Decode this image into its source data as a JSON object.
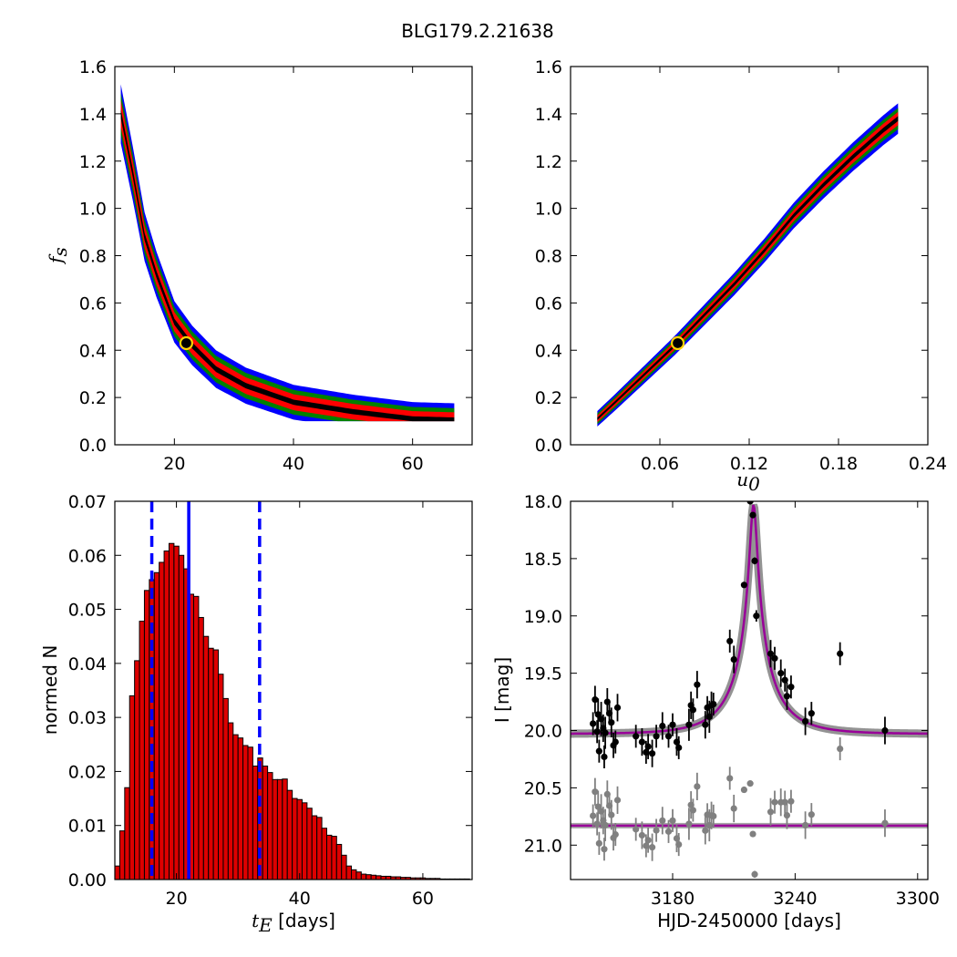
{
  "figure": {
    "title": "BLG179.2.21638"
  },
  "colors": {
    "c99": "#000000",
    "c95": "#ff0000",
    "c68": "#008000",
    "c50": "#0000ff",
    "hist": "#dd0000",
    "median": "#0000ff",
    "model": "#990099",
    "band": "#808080",
    "data": "#000000",
    "resid": "#808080",
    "marker_edge": "#ffd200"
  },
  "chart_data": [
    {
      "id": "fs-vs-tE",
      "type": "heatmap",
      "xlim": [
        10,
        70
      ],
      "ylim": [
        0,
        1.6
      ],
      "xticks": [
        20,
        40,
        60
      ],
      "yticks": [
        0.0,
        0.2,
        0.4,
        0.6,
        0.8,
        1.0,
        1.2,
        1.4,
        1.6
      ],
      "xlabel": "",
      "ylabel": "f_s",
      "ylabel_parts": {
        "main": "f",
        "sub": "s"
      },
      "levels": [
        "outer",
        "mid",
        "inner",
        "core"
      ],
      "ridge": {
        "tE": [
          11,
          13,
          15,
          17,
          20,
          23,
          27,
          32,
          40,
          50,
          60,
          67
        ],
        "fs": [
          1.4,
          1.15,
          0.88,
          0.72,
          0.52,
          0.42,
          0.32,
          0.25,
          0.18,
          0.14,
          0.11,
          0.105
        ]
      },
      "best": {
        "tE": 22,
        "fs": 0.43
      }
    },
    {
      "id": "fs-vs-u0",
      "type": "heatmap",
      "xlim": [
        0.0,
        0.24
      ],
      "ylim": [
        0,
        1.6
      ],
      "xticks": [
        0.06,
        0.12,
        0.18,
        0.24
      ],
      "yticks": [
        0.0,
        0.2,
        0.4,
        0.6,
        0.8,
        1.0,
        1.2,
        1.4,
        1.6
      ],
      "xlabel": "u_0",
      "ylabel": "",
      "xlabel_parts": {
        "main": "u",
        "sub": "0"
      },
      "levels": [
        "outer",
        "mid",
        "inner",
        "core"
      ],
      "ridge": {
        "u0": [
          0.018,
          0.03,
          0.05,
          0.07,
          0.09,
          0.11,
          0.13,
          0.15,
          0.17,
          0.19,
          0.21,
          0.22
        ],
        "fs": [
          0.11,
          0.18,
          0.3,
          0.42,
          0.55,
          0.68,
          0.82,
          0.97,
          1.1,
          1.22,
          1.33,
          1.38
        ]
      },
      "best": {
        "u0": 0.072,
        "fs": 0.43
      }
    },
    {
      "id": "tE-histogram",
      "type": "bar",
      "xlim": [
        10,
        68
      ],
      "ylim": [
        0,
        0.07
      ],
      "xticks": [
        20,
        40,
        60
      ],
      "yticks": [
        0.0,
        0.01,
        0.02,
        0.03,
        0.04,
        0.05,
        0.06,
        0.07
      ],
      "ytick_labels": [
        "0.00",
        "0.01",
        "0.02",
        "0.03",
        "0.04",
        "0.05",
        "0.06",
        "0.07"
      ],
      "xlabel_parts": {
        "main": "t",
        "sub": "E",
        "suffix": " [days]"
      },
      "ylabel": "normed N",
      "bin_start": 10,
      "bin_width": 0.8,
      "values": [
        0.0025,
        0.009,
        0.017,
        0.034,
        0.0405,
        0.0478,
        0.0535,
        0.0555,
        0.0568,
        0.0587,
        0.0608,
        0.0622,
        0.0617,
        0.06,
        0.0575,
        0.0528,
        0.0524,
        0.0485,
        0.045,
        0.0428,
        0.0425,
        0.038,
        0.0335,
        0.029,
        0.0268,
        0.0262,
        0.0248,
        0.0245,
        0.021,
        0.0225,
        0.021,
        0.0198,
        0.0185,
        0.0185,
        0.0186,
        0.0165,
        0.015,
        0.0148,
        0.0142,
        0.0132,
        0.0118,
        0.0115,
        0.0095,
        0.0082,
        0.008,
        0.0065,
        0.0045,
        0.0025,
        0.0018,
        0.0014,
        0.001,
        0.0009,
        0.0008,
        0.0007,
        0.0006,
        0.0006,
        0.0005,
        0.0005,
        0.0004,
        0.0004,
        0.0003,
        0.0003,
        0.0003,
        0.0002,
        0.0002,
        0.0002,
        0.0001,
        0.0001,
        0.0001,
        0.0001,
        0.0001,
        0.0001
      ],
      "median": 22.0,
      "percentiles": [
        16.0,
        33.5
      ]
    },
    {
      "id": "light-curve",
      "type": "scatter",
      "xlim": [
        3130,
        3305
      ],
      "ylim": [
        21.3,
        18.0
      ],
      "xticks": [
        3180,
        3240,
        3300
      ],
      "yticks": [
        18.0,
        18.5,
        19.0,
        19.5,
        20.0,
        20.5,
        21.0
      ],
      "ytick_labels": [
        "18.0",
        "18.5",
        "19.0",
        "19.5",
        "20.0",
        "20.5",
        "21.0"
      ],
      "xlabel": "HJD-2450000 [days]",
      "ylabel": "I [mag]",
      "model": {
        "t0": 3219.6,
        "peak_mag": 18.03,
        "base_mag": 20.03,
        "tE": 22,
        "u0": 0.072
      },
      "residual_offset": 20.83,
      "series": [
        {
          "role": "data",
          "t": [
            3141,
            3142,
            3143,
            3143.5,
            3144,
            3145,
            3146,
            3146.5,
            3147,
            3148,
            3149,
            3150,
            3151,
            3152,
            3153,
            3162,
            3165,
            3167,
            3168,
            3170,
            3172,
            3175,
            3178,
            3180,
            3182,
            3183,
            3188,
            3189,
            3190,
            3192,
            3196,
            3197,
            3198,
            3199,
            3200,
            3208,
            3210,
            3215,
            3218,
            3219.3,
            3220.2,
            3221,
            3228,
            3230,
            3233,
            3235,
            3236,
            3238,
            3245,
            3248,
            3262,
            3284
          ],
          "mag": [
            19.94,
            19.73,
            20.01,
            19.86,
            20.18,
            19.9,
            19.98,
            20.23,
            20.02,
            19.75,
            19.85,
            19.93,
            20.13,
            20.1,
            19.8,
            20.05,
            20.1,
            20.19,
            20.14,
            20.2,
            20.05,
            19.96,
            20.05,
            19.95,
            20.1,
            20.15,
            19.95,
            19.78,
            19.82,
            19.6,
            19.95,
            19.8,
            19.88,
            19.78,
            19.77,
            19.22,
            19.38,
            18.73,
            18.0,
            18.12,
            18.52,
            19.0,
            19.33,
            19.37,
            19.5,
            19.56,
            19.7,
            19.62,
            19.92,
            19.85,
            19.33,
            20.0
          ],
          "err": [
            0.1,
            0.12,
            0.1,
            0.14,
            0.1,
            0.15,
            0.12,
            0.1,
            0.14,
            0.12,
            0.1,
            0.13,
            0.11,
            0.1,
            0.12,
            0.1,
            0.12,
            0.1,
            0.11,
            0.12,
            0.1,
            0.12,
            0.1,
            0.1,
            0.12,
            0.1,
            0.14,
            0.12,
            0.1,
            0.12,
            0.12,
            0.1,
            0.14,
            0.12,
            0.1,
            0.1,
            0.12,
            0.02,
            0.02,
            0.02,
            0.03,
            0.05,
            0.12,
            0.1,
            0.12,
            0.1,
            0.12,
            0.1,
            0.12,
            0.1,
            0.1,
            0.12
          ]
        }
      ]
    }
  ]
}
